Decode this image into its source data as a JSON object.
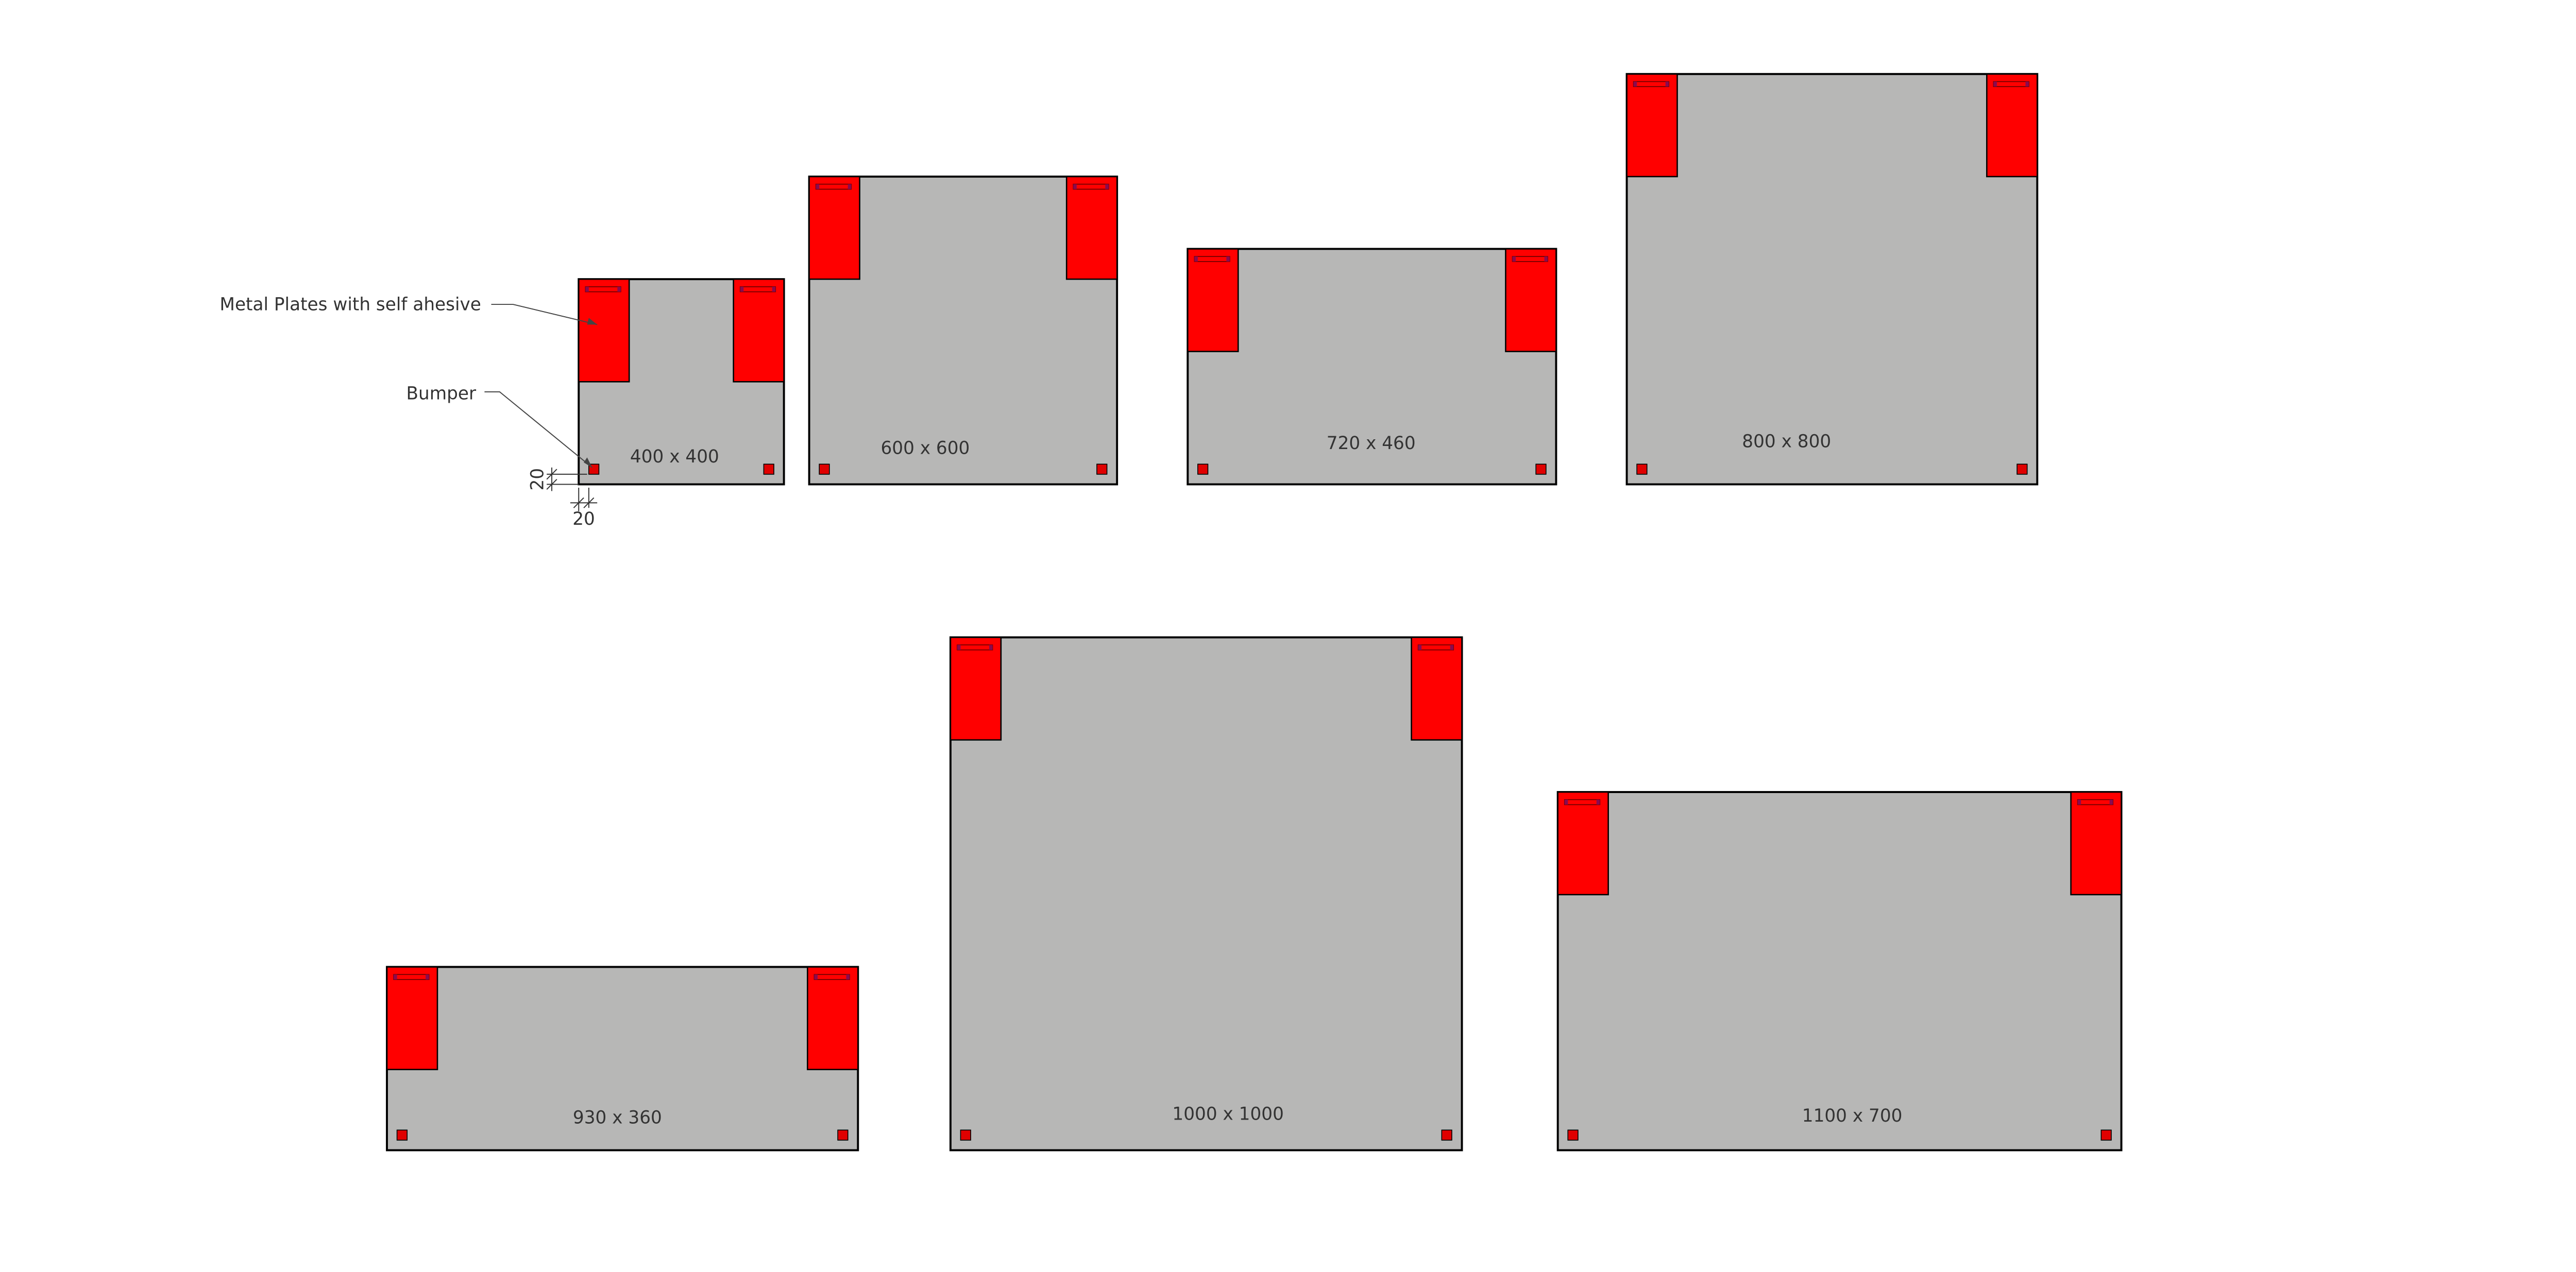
{
  "annotations": {
    "plates_label": "Metal Plates with self ahesive",
    "bumper_label": "Bumper",
    "dim_vertical": "20",
    "dim_horizontal": "20"
  },
  "panels": [
    {
      "size_label": "400 x 400"
    },
    {
      "size_label": "600 x 600"
    },
    {
      "size_label": "720 x 460"
    },
    {
      "size_label": "800 x 800"
    },
    {
      "size_label": "930 x 360"
    },
    {
      "size_label": "1000 x 1000"
    },
    {
      "size_label": "1100 x 700"
    }
  ],
  "colors": {
    "panel_fill": "#b7b7b6",
    "plate_fill": "#ff0000",
    "bumper_fill": "#e00000",
    "handle_end": "#8b0a50",
    "outline": "#000000"
  }
}
